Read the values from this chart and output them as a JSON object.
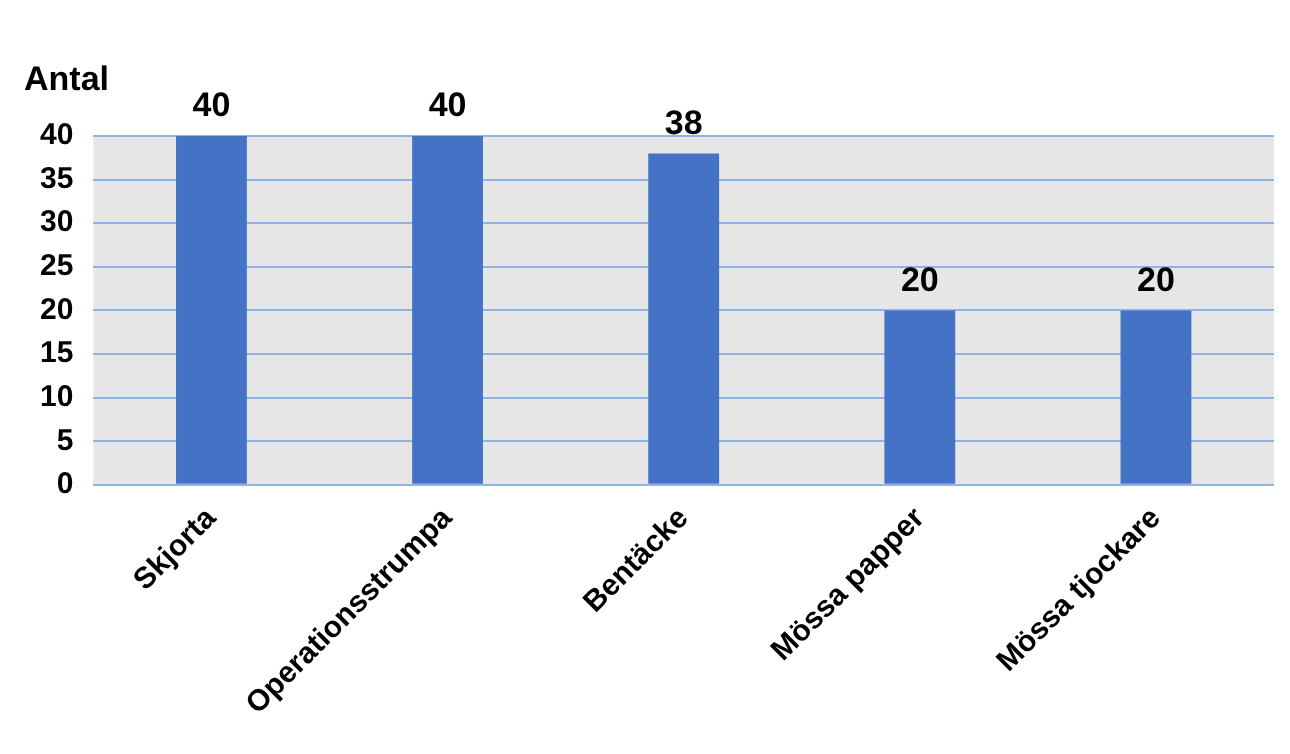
{
  "chart_data": {
    "type": "bar",
    "ylabel": "Antal",
    "categories": [
      "Skjorta",
      "Operationsstrumpa",
      "Bentäcke",
      "Mössa papper",
      "Mössa tjockare"
    ],
    "values": [
      40,
      40,
      38,
      20,
      20
    ],
    "color": "#4472c4",
    "ylim": [
      0,
      40
    ],
    "yticks": [
      0,
      5,
      10,
      15,
      20,
      25,
      30,
      35,
      40
    ],
    "grid": "y",
    "data_labels": true
  }
}
